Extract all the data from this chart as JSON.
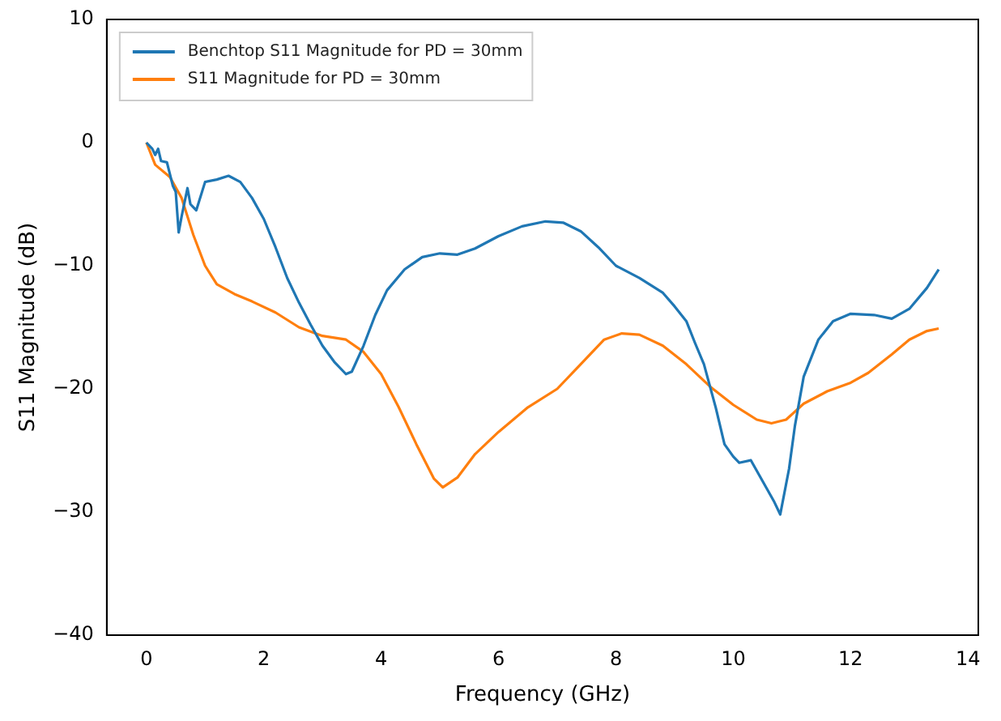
{
  "chart_data": {
    "type": "line",
    "xlabel": "Frequency (GHz)",
    "ylabel": "S11 Magnitude (dB)",
    "xlim": [
      -0.675,
      14.175
    ],
    "xticks": [
      0,
      2,
      4,
      6,
      8,
      10,
      12,
      14
    ],
    "ylim": [
      -40,
      10
    ],
    "yticks": [
      -40,
      -30,
      -20,
      -10,
      0,
      10
    ],
    "grid": false,
    "legend": "top left",
    "marker": "none",
    "line_style": "solid",
    "series": [
      {
        "name": "Benchtop S11 Magnitude for PD = 30mm",
        "color": "#1f77b4",
        "x": [
          0,
          0.1,
          0.15,
          0.2,
          0.25,
          0.35,
          0.45,
          0.5,
          0.55,
          0.6,
          0.7,
          0.75,
          0.85,
          1.0,
          1.2,
          1.4,
          1.6,
          1.8,
          2.0,
          2.2,
          2.4,
          2.6,
          2.8,
          3.0,
          3.2,
          3.4,
          3.5,
          3.7,
          3.9,
          4.1,
          4.4,
          4.7,
          5.0,
          5.3,
          5.6,
          6.0,
          6.4,
          6.8,
          7.1,
          7.4,
          7.7,
          8.0,
          8.4,
          8.8,
          9.0,
          9.2,
          9.35,
          9.5,
          9.7,
          9.85,
          10.0,
          10.1,
          10.3,
          10.5,
          10.7,
          10.8,
          10.95,
          11.05,
          11.2,
          11.45,
          11.7,
          12.0,
          12.4,
          12.7,
          13.0,
          13.3,
          13.5
        ],
        "values": [
          0,
          -0.5,
          -1.0,
          -0.5,
          -1.5,
          -1.6,
          -3.5,
          -4,
          -7.3,
          -6,
          -3.7,
          -5,
          -5.5,
          -3.2,
          -3.0,
          -2.7,
          -3.2,
          -4.5,
          -6.2,
          -8.5,
          -11,
          -13,
          -14.8,
          -16.5,
          -17.8,
          -18.8,
          -18.6,
          -16.5,
          -14,
          -12,
          -10.3,
          -9.3,
          -9.0,
          -9.1,
          -8.6,
          -7.6,
          -6.8,
          -6.4,
          -6.5,
          -7.2,
          -8.5,
          -10.0,
          -11,
          -12.2,
          -13.3,
          -14.5,
          -16.3,
          -18,
          -21.5,
          -24.5,
          -25.5,
          -26,
          -25.8,
          -27.5,
          -29.2,
          -30.2,
          -26.5,
          -23,
          -19,
          -16,
          -14.5,
          -13.9,
          -14.0,
          -14.3,
          -13.5,
          -11.8,
          -10.3
        ]
      },
      {
        "name": "S11 Magnitude for PD = 30mm",
        "color": "#ff7f0e",
        "x": [
          0,
          0.15,
          0.4,
          0.6,
          0.8,
          1.0,
          1.2,
          1.5,
          1.8,
          2.2,
          2.6,
          3.0,
          3.4,
          3.7,
          4.0,
          4.3,
          4.6,
          4.9,
          5.05,
          5.3,
          5.6,
          6.0,
          6.5,
          7.0,
          7.4,
          7.8,
          8.1,
          8.4,
          8.8,
          9.2,
          9.6,
          10.0,
          10.4,
          10.65,
          10.9,
          11.2,
          11.6,
          12.0,
          12.3,
          12.7,
          13.0,
          13.3,
          13.5
        ],
        "values": [
          0,
          -1.8,
          -2.8,
          -4.5,
          -7.5,
          -10.0,
          -11.5,
          -12.3,
          -12.9,
          -13.8,
          -15.0,
          -15.7,
          -16.0,
          -17.0,
          -18.8,
          -21.5,
          -24.5,
          -27.3,
          -28.0,
          -27.2,
          -25.3,
          -23.5,
          -21.5,
          -20.0,
          -18.0,
          -16.0,
          -15.5,
          -15.6,
          -16.5,
          -18.0,
          -19.8,
          -21.3,
          -22.5,
          -22.8,
          -22.5,
          -21.2,
          -20.2,
          -19.5,
          -18.7,
          -17.2,
          -16.0,
          -15.3,
          -15.1
        ]
      }
    ]
  }
}
